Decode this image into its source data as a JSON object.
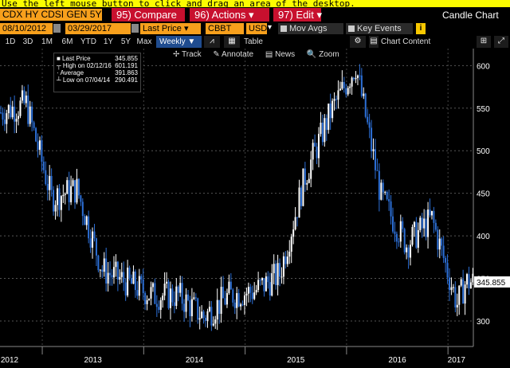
{
  "hint_bar": {
    "text": "Use the left mouse button to click and drag an area of the desktop."
  },
  "toolbar1": {
    "security": "CDX HY CDSI GEN 5Y",
    "compare": "95) Compare",
    "actions": "96) Actions",
    "edit": "97) Edit",
    "view_title": "Candle Chart"
  },
  "toolbar2": {
    "start_date": "08/10/2012",
    "end_date": "03/29/2017",
    "field": "Last Price",
    "source": "CBBT",
    "currency": "USD",
    "mov_avgs": "Mov Avgs",
    "key_events": "Key Events",
    "info": "i"
  },
  "toolbar3": {
    "periods": [
      "1D",
      "3D",
      "1M",
      "6M",
      "YTD",
      "1Y",
      "5Y",
      "Max"
    ],
    "frequency": "Weekly",
    "table": "Table",
    "chart_content": "Chart Content"
  },
  "chart_tools": {
    "track": "Track",
    "annotate": "Annotate",
    "news": "News",
    "zoom": "Zoom"
  },
  "legend": {
    "rows": [
      {
        "label": "Last Price",
        "value": "345.855"
      },
      {
        "label": "High on 02/12/16",
        "value": "601.191"
      },
      {
        "label": "Average",
        "value": "391.863"
      },
      {
        "label": "Low on 07/04/14",
        "value": "290.491"
      }
    ]
  },
  "colors": {
    "up": "#ffffff",
    "down": "#2c6fd6",
    "orange": "#f8a01c",
    "red": "#c8102e"
  },
  "chart_data": {
    "type": "candlestick",
    "x": [
      "2012-08",
      "2012-11",
      "2013-02",
      "2013-05",
      "2013-08",
      "2013-11",
      "2014-02",
      "2014-05",
      "2014-08",
      "2014-11",
      "2015-02",
      "2015-05",
      "2015-08",
      "2015-11",
      "2016-02",
      "2016-05",
      "2016-08",
      "2016-11",
      "2017-02",
      "2017-03"
    ],
    "values": [
      545,
      555,
      445,
      455,
      360,
      345,
      330,
      330,
      305,
      330,
      335,
      355,
      470,
      545,
      600,
      445,
      390,
      420,
      320,
      345.855
    ],
    "x_tick_labels": [
      "2012",
      "2013",
      "2014",
      "2015",
      "2016",
      "2017"
    ],
    "y_ticks": [
      300,
      350,
      400,
      450,
      500,
      550,
      600
    ],
    "ylim": [
      270,
      620
    ],
    "last_value_label": "345.855",
    "grid": true
  }
}
